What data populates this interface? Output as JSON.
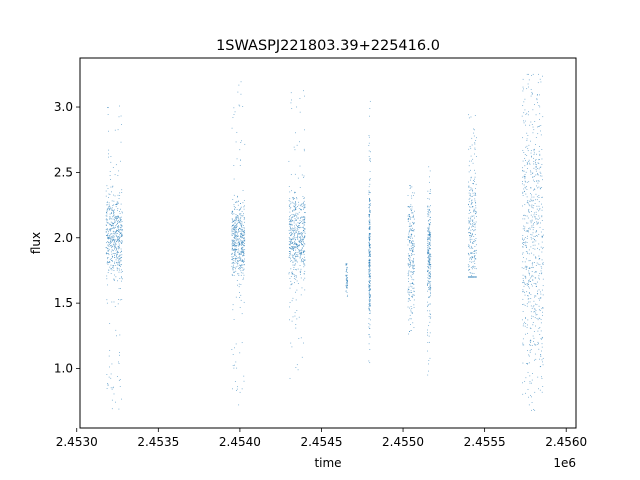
{
  "chart_data": {
    "type": "scatter",
    "title": "1SWASPJ221803.39+225416.0",
    "xlabel": "time",
    "ylabel": "flux",
    "x_offset_label": "1e6",
    "xlim": [
      2.45302,
      2.45606
    ],
    "ylim": [
      0.545,
      3.375
    ],
    "x_ticks": [
      {
        "value": 2.453,
        "label": "2.4530"
      },
      {
        "value": 2.4535,
        "label": "2.4535"
      },
      {
        "value": 2.454,
        "label": "2.4540"
      },
      {
        "value": 2.4545,
        "label": "2.4545"
      },
      {
        "value": 2.455,
        "label": "2.4550"
      },
      {
        "value": 2.4555,
        "label": "2.4555"
      },
      {
        "value": 2.456,
        "label": "2.4560"
      }
    ],
    "y_ticks": [
      {
        "value": 1.0,
        "label": "1.0"
      },
      {
        "value": 1.5,
        "label": "1.5"
      },
      {
        "value": 2.0,
        "label": "2.0"
      },
      {
        "value": 2.5,
        "label": "2.5"
      },
      {
        "value": 3.0,
        "label": "3.0"
      }
    ],
    "grid": false,
    "marker_color": "#1f77b4",
    "observing_seasons": [
      {
        "x_start": 2.45318,
        "x_end": 2.45328,
        "y_median": 2.0,
        "y_core": [
          1.8,
          2.2
        ],
        "y_range": [
          0.68,
          3.02
        ]
      },
      {
        "x_start": 2.45395,
        "x_end": 2.45403,
        "y_median": 1.98,
        "y_core": [
          1.8,
          2.15
        ],
        "y_range": [
          0.7,
          3.2
        ]
      },
      {
        "x_start": 2.4543,
        "x_end": 2.4544,
        "y_median": 2.0,
        "y_core": [
          1.8,
          2.2
        ],
        "y_range": [
          0.9,
          3.18
        ]
      },
      {
        "x_start": 2.45465,
        "x_end": 2.45466,
        "y_median": 1.7,
        "y_core": [
          1.6,
          1.8
        ],
        "y_range": [
          1.55,
          1.8
        ]
      },
      {
        "x_start": 2.45479,
        "x_end": 2.4548,
        "y_median": 1.85,
        "y_core": [
          1.5,
          2.2
        ],
        "y_range": [
          0.98,
          3.06
        ]
      },
      {
        "x_start": 2.45503,
        "x_end": 2.45507,
        "y_median": 1.9,
        "y_core": [
          1.6,
          2.2
        ],
        "y_range": [
          1.25,
          2.4
        ]
      },
      {
        "x_start": 2.45515,
        "x_end": 2.45517,
        "y_median": 1.85,
        "y_core": [
          1.6,
          2.2
        ],
        "y_range": [
          0.95,
          2.57
        ]
      },
      {
        "x_start": 2.4554,
        "x_end": 2.45545,
        "y_median": 2.0,
        "y_core": [
          1.75,
          2.6
        ],
        "y_range": [
          1.7,
          2.95
        ]
      },
      {
        "x_start": 2.45573,
        "x_end": 2.45586,
        "y_median": 2.0,
        "y_core": [
          1.3,
          2.7
        ],
        "y_range": [
          0.68,
          3.25
        ]
      }
    ]
  }
}
